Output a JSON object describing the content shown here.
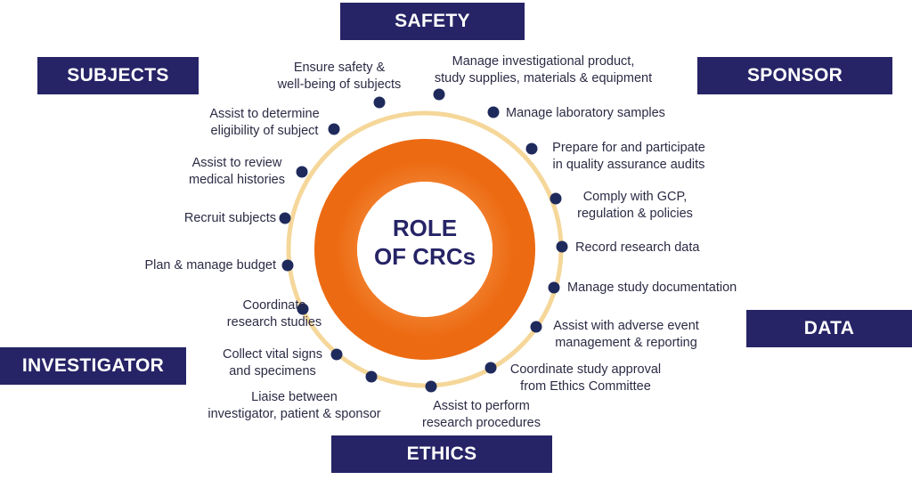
{
  "title": [
    "ROLE",
    "OF CRCs"
  ],
  "categories": {
    "safety": "SAFETY",
    "subjects": "SUBJECTS",
    "sponsor": "SPONSOR",
    "data": "DATA",
    "investigator": "INVESTIGATOR",
    "ethics": "ETHICS"
  },
  "roles": [
    [
      "Ensure safety &",
      "well-being of subjects"
    ],
    [
      "Manage investigational product,",
      "study supplies, materials & equipment"
    ],
    [
      "Manage laboratory samples"
    ],
    [
      "Prepare for and participate",
      "in quality assurance audits"
    ],
    [
      "Comply with GCP,",
      "regulation & policies"
    ],
    [
      "Record research data"
    ],
    [
      "Manage study documentation"
    ],
    [
      "Assist with adverse event",
      "management & reporting"
    ],
    [
      "Coordinate study approval",
      "from Ethics Committee"
    ],
    [
      "Assist to perform",
      "research procedures"
    ],
    [
      "Liaise between",
      "investigator, patient & sponsor"
    ],
    [
      "Collect vital signs",
      "and specimens"
    ],
    [
      "Coordinate",
      "research studies"
    ],
    [
      "Plan & manage budget"
    ],
    [
      "Recruit subjects"
    ],
    [
      "Assist to review",
      "medical histories"
    ],
    [
      "Assist to determine",
      "eligibility of subject"
    ]
  ],
  "colors": {
    "navy": "#262466",
    "orange": "#f07020",
    "ring": "#f5d79a",
    "dot": "#1f2a5c",
    "text": "#2b2b45"
  }
}
